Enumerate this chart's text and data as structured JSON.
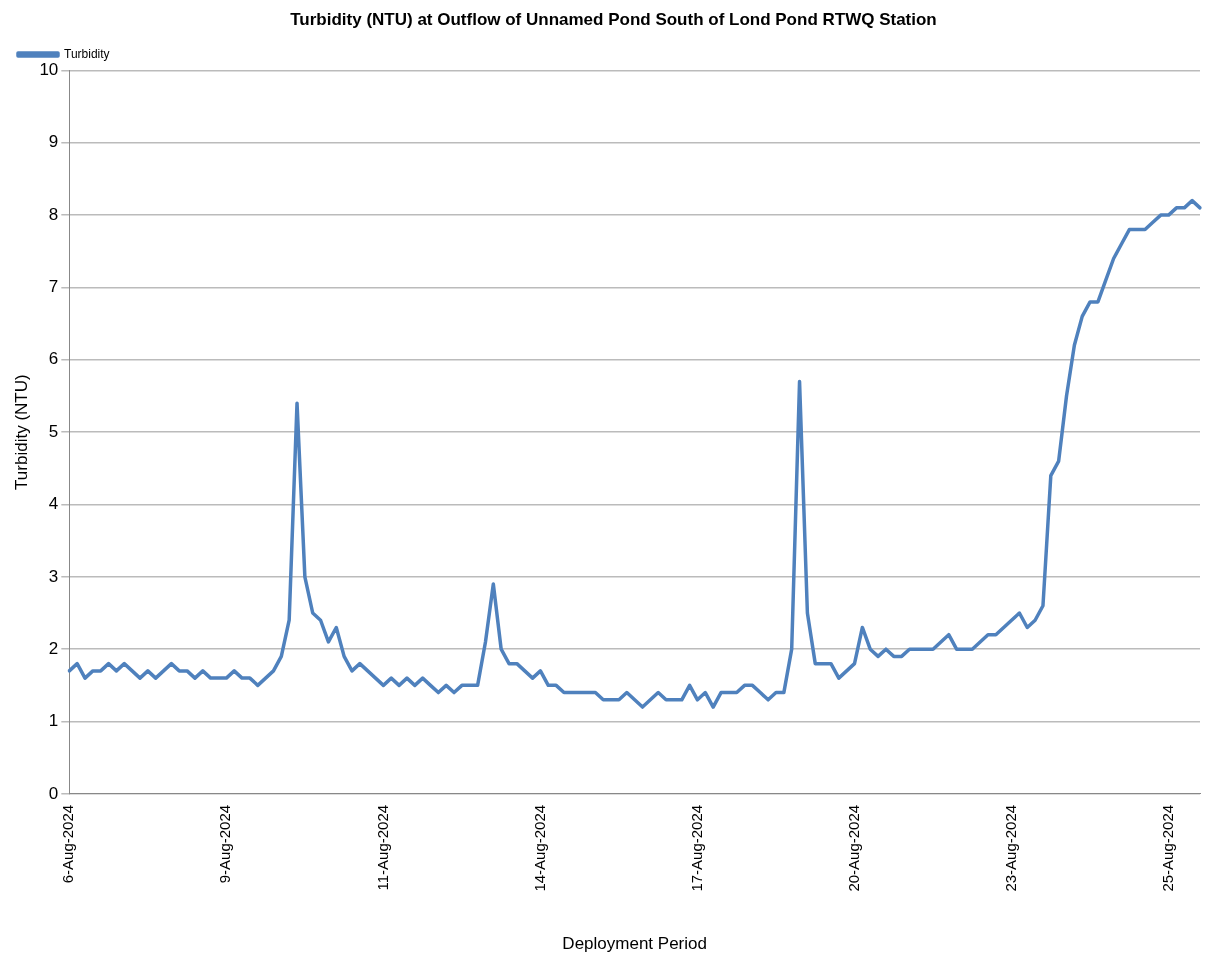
{
  "chart_data": {
    "type": "line",
    "title": "Turbidity (NTU) at Outflow of Unnamed Pond South of Lond Pond RTWQ Station",
    "xlabel": "Deployment Period",
    "ylabel": "Turbidity (NTU)",
    "categories": [
      "6-Aug-2024",
      null,
      null,
      null,
      null,
      null,
      null,
      null,
      null,
      null,
      null,
      null,
      null,
      null,
      null,
      null,
      null,
      null,
      null,
      null,
      "9-Aug-2024",
      null,
      null,
      null,
      null,
      null,
      null,
      null,
      null,
      null,
      null,
      null,
      null,
      null,
      null,
      null,
      null,
      null,
      null,
      null,
      "11-Aug-2024",
      null,
      null,
      null,
      null,
      null,
      null,
      null,
      null,
      null,
      null,
      null,
      null,
      null,
      null,
      null,
      null,
      null,
      null,
      null,
      "14-Aug-2024",
      null,
      null,
      null,
      null,
      null,
      null,
      null,
      null,
      null,
      null,
      null,
      null,
      null,
      null,
      null,
      null,
      null,
      null,
      null,
      "17-Aug-2024",
      null,
      null,
      null,
      null,
      null,
      null,
      null,
      null,
      null,
      null,
      null,
      null,
      null,
      null,
      null,
      null,
      null,
      null,
      null,
      "20-Aug-2024",
      null,
      null,
      null,
      null,
      null,
      null,
      null,
      null,
      null,
      null,
      null,
      null,
      null,
      null,
      null,
      null,
      null,
      null,
      null,
      "23-Aug-2024",
      null,
      null,
      null,
      null,
      null,
      null,
      null,
      null,
      null,
      null,
      null,
      null,
      null,
      null,
      null,
      null,
      null,
      null,
      null,
      "25-Aug-2024",
      null,
      null,
      null,
      null
    ],
    "series": [
      {
        "name": "Turbidity",
        "color": "#4f81bd",
        "values": [
          1.7,
          1.8,
          1.6,
          1.7,
          1.7,
          1.8,
          1.7,
          1.8,
          1.7,
          1.6,
          1.7,
          1.6,
          1.7,
          1.8,
          1.7,
          1.7,
          1.6,
          1.7,
          1.6,
          1.6,
          1.6,
          1.7,
          1.6,
          1.6,
          1.5,
          1.6,
          1.7,
          1.9,
          2.4,
          5.4,
          3.0,
          2.5,
          2.4,
          2.1,
          2.3,
          1.9,
          1.7,
          1.8,
          1.7,
          1.6,
          1.5,
          1.6,
          1.5,
          1.6,
          1.5,
          1.6,
          1.5,
          1.4,
          1.5,
          1.4,
          1.5,
          1.5,
          1.5,
          2.1,
          2.9,
          2.0,
          1.8,
          1.8,
          1.7,
          1.6,
          1.7,
          1.5,
          1.5,
          1.4,
          1.4,
          1.4,
          1.4,
          1.4,
          1.3,
          1.3,
          1.3,
          1.4,
          1.3,
          1.2,
          1.3,
          1.4,
          1.3,
          1.3,
          1.3,
          1.5,
          1.3,
          1.4,
          1.2,
          1.4,
          1.4,
          1.4,
          1.5,
          1.5,
          1.4,
          1.3,
          1.4,
          1.4,
          2.0,
          5.7,
          2.5,
          1.8,
          1.8,
          1.8,
          1.6,
          1.7,
          1.8,
          2.3,
          2.0,
          1.9,
          2.0,
          1.9,
          1.9,
          2.0,
          2.0,
          2.0,
          2.0,
          2.1,
          2.2,
          2.0,
          2.0,
          2.0,
          2.1,
          2.2,
          2.2,
          2.3,
          2.4,
          2.5,
          2.3,
          2.4,
          2.6,
          4.4,
          4.6,
          5.5,
          6.2,
          6.6,
          6.8,
          6.8,
          7.1,
          7.4,
          7.6,
          7.8,
          7.8,
          7.8,
          7.9,
          8.0,
          8.0,
          8.1,
          8.1,
          8.2,
          8.1
        ]
      }
    ],
    "ylim": [
      0,
      10
    ],
    "yticks": [
      0,
      1,
      2,
      3,
      4,
      5,
      6,
      7,
      8,
      9,
      10
    ],
    "grid": "y",
    "legend": "top left",
    "marker": "none",
    "line_style": "solid"
  }
}
